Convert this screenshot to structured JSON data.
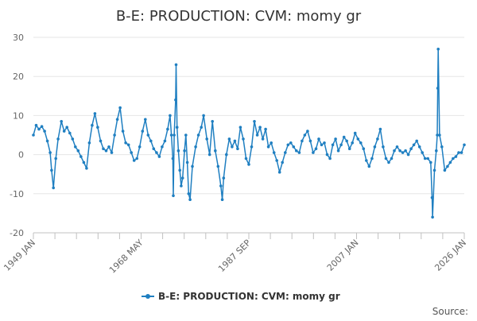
{
  "chart_data": {
    "type": "line",
    "title": "B-E: PRODUCTION: CVM: momy gr",
    "xlabel": "",
    "ylabel": "",
    "x_range": [
      "1949 JAN",
      "2026 JAN"
    ],
    "ylim": [
      -20,
      30
    ],
    "y_ticks": [
      -20,
      -10,
      0,
      10,
      20,
      30
    ],
    "x_tick_labels": [
      "1949 JAN",
      "1968 MAY",
      "1987 SEP",
      "2007 JAN",
      "2026 JAN"
    ],
    "grid": true,
    "legend": "bottom-center",
    "series": [
      {
        "name": "B-E: PRODUCTION: CVM: momy gr",
        "color": "#1f7fc1",
        "points": [
          [
            "1949-01",
            5.0
          ],
          [
            "1949-07",
            7.5
          ],
          [
            "1950-01",
            6.5
          ],
          [
            "1950-07",
            7.2
          ],
          [
            "1951-01",
            6.0
          ],
          [
            "1951-07",
            3.5
          ],
          [
            "1952-01",
            0.5
          ],
          [
            "1952-04",
            -4.0
          ],
          [
            "1952-08",
            -8.5
          ],
          [
            "1953-01",
            -1.0
          ],
          [
            "1953-06",
            4.0
          ],
          [
            "1954-01",
            8.5
          ],
          [
            "1954-07",
            6.0
          ],
          [
            "1955-01",
            7.0
          ],
          [
            "1955-07",
            5.5
          ],
          [
            "1956-01",
            4.0
          ],
          [
            "1956-07",
            2.0
          ],
          [
            "1957-01",
            1.0
          ],
          [
            "1957-07",
            -0.5
          ],
          [
            "1958-01",
            -2.0
          ],
          [
            "1958-07",
            -3.5
          ],
          [
            "1959-01",
            3.0
          ],
          [
            "1959-07",
            7.5
          ],
          [
            "1960-01",
            10.5
          ],
          [
            "1960-07",
            7.0
          ],
          [
            "1961-01",
            3.5
          ],
          [
            "1961-07",
            1.5
          ],
          [
            "1962-01",
            1.0
          ],
          [
            "1962-07",
            2.0
          ],
          [
            "1963-01",
            0.5
          ],
          [
            "1963-07",
            5.0
          ],
          [
            "1964-01",
            9.0
          ],
          [
            "1964-07",
            12.0
          ],
          [
            "1965-01",
            6.0
          ],
          [
            "1965-07",
            3.0
          ],
          [
            "1966-01",
            2.5
          ],
          [
            "1966-07",
            0.5
          ],
          [
            "1967-01",
            -1.5
          ],
          [
            "1967-07",
            -1.0
          ],
          [
            "1968-01",
            2.0
          ],
          [
            "1968-07",
            6.0
          ],
          [
            "1969-01",
            9.0
          ],
          [
            "1969-07",
            5.0
          ],
          [
            "1970-01",
            3.5
          ],
          [
            "1970-07",
            1.5
          ],
          [
            "1971-01",
            0.5
          ],
          [
            "1971-07",
            -0.5
          ],
          [
            "1972-01",
            2.0
          ],
          [
            "1972-07",
            3.5
          ],
          [
            "1973-01",
            6.5
          ],
          [
            "1973-06",
            10.0
          ],
          [
            "1973-09",
            5.0
          ],
          [
            "1973-12",
            -1.0
          ],
          [
            "1974-01",
            -10.5
          ],
          [
            "1974-03",
            5.0
          ],
          [
            "1974-06",
            14.0
          ],
          [
            "1974-07",
            23.0
          ],
          [
            "1974-09",
            7.0
          ],
          [
            "1974-12",
            1.0
          ],
          [
            "1975-03",
            -4.0
          ],
          [
            "1975-06",
            -8.0
          ],
          [
            "1975-09",
            -6.0
          ],
          [
            "1976-01",
            1.0
          ],
          [
            "1976-04",
            5.0
          ],
          [
            "1976-07",
            -2.0
          ],
          [
            "1976-10",
            -10.0
          ],
          [
            "1977-01",
            -11.5
          ],
          [
            "1977-06",
            -3.0
          ],
          [
            "1978-01",
            2.0
          ],
          [
            "1978-07",
            5.0
          ],
          [
            "1979-01",
            7.0
          ],
          [
            "1979-06",
            10.0
          ],
          [
            "1980-01",
            4.0
          ],
          [
            "1980-07",
            0.0
          ],
          [
            "1981-01",
            8.5
          ],
          [
            "1981-07",
            1.0
          ],
          [
            "1982-01",
            -3.0
          ],
          [
            "1982-07",
            -8.0
          ],
          [
            "1982-10",
            -11.5
          ],
          [
            "1983-01",
            -6.0
          ],
          [
            "1983-07",
            0.0
          ],
          [
            "1984-01",
            4.0
          ],
          [
            "1984-07",
            2.0
          ],
          [
            "1985-01",
            3.5
          ],
          [
            "1985-07",
            1.5
          ],
          [
            "1986-01",
            7.0
          ],
          [
            "1986-07",
            4.0
          ],
          [
            "1987-01",
            -1.0
          ],
          [
            "1987-07",
            -2.5
          ],
          [
            "1988-01",
            2.0
          ],
          [
            "1988-07",
            8.5
          ],
          [
            "1989-01",
            5.0
          ],
          [
            "1989-07",
            7.0
          ],
          [
            "1990-01",
            4.0
          ],
          [
            "1990-07",
            6.5
          ],
          [
            "1991-01",
            2.0
          ],
          [
            "1991-07",
            3.0
          ],
          [
            "1992-01",
            0.5
          ],
          [
            "1992-07",
            -1.5
          ],
          [
            "1993-01",
            -4.5
          ],
          [
            "1993-07",
            -2.0
          ],
          [
            "1994-01",
            0.5
          ],
          [
            "1994-07",
            2.5
          ],
          [
            "1995-01",
            3.0
          ],
          [
            "1995-07",
            2.0
          ],
          [
            "1996-01",
            1.0
          ],
          [
            "1996-07",
            0.5
          ],
          [
            "1997-01",
            3.5
          ],
          [
            "1997-07",
            5.0
          ],
          [
            "1998-01",
            6.0
          ],
          [
            "1998-07",
            3.5
          ],
          [
            "1999-01",
            0.5
          ],
          [
            "1999-07",
            1.5
          ],
          [
            "2000-01",
            4.0
          ],
          [
            "2000-07",
            2.5
          ],
          [
            "2001-01",
            3.0
          ],
          [
            "2001-07",
            0.0
          ],
          [
            "2002-01",
            -1.0
          ],
          [
            "2002-07",
            2.5
          ],
          [
            "2003-01",
            4.0
          ],
          [
            "2003-07",
            1.0
          ],
          [
            "2004-01",
            2.5
          ],
          [
            "2004-07",
            4.5
          ],
          [
            "2005-01",
            3.5
          ],
          [
            "2005-07",
            1.5
          ],
          [
            "2006-01",
            3.0
          ],
          [
            "2006-07",
            5.5
          ],
          [
            "2007-01",
            4.0
          ],
          [
            "2007-07",
            3.0
          ],
          [
            "2008-01",
            1.5
          ],
          [
            "2008-07",
            -1.5
          ],
          [
            "2009-01",
            -3.0
          ],
          [
            "2009-07",
            -1.0
          ],
          [
            "2010-01",
            2.0
          ],
          [
            "2010-07",
            4.0
          ],
          [
            "2011-01",
            6.5
          ],
          [
            "2011-07",
            2.0
          ],
          [
            "2012-01",
            -1.0
          ],
          [
            "2012-07",
            -2.0
          ],
          [
            "2013-01",
            -1.0
          ],
          [
            "2013-07",
            1.0
          ],
          [
            "2014-01",
            2.0
          ],
          [
            "2014-07",
            1.0
          ],
          [
            "2015-01",
            0.5
          ],
          [
            "2015-07",
            1.0
          ],
          [
            "2016-01",
            0.0
          ],
          [
            "2016-07",
            1.5
          ],
          [
            "2017-01",
            2.5
          ],
          [
            "2017-07",
            3.5
          ],
          [
            "2018-01",
            2.0
          ],
          [
            "2018-07",
            0.5
          ],
          [
            "2019-01",
            -1.0
          ],
          [
            "2019-07",
            -1.0
          ],
          [
            "2020-01",
            -2.0
          ],
          [
            "2020-04",
            -11.0
          ],
          [
            "2020-05",
            -16.0
          ],
          [
            "2020-09",
            -4.0
          ],
          [
            "2021-01",
            1.0
          ],
          [
            "2021-03",
            5.0
          ],
          [
            "2021-04",
            17.0
          ],
          [
            "2021-05",
            27.0
          ],
          [
            "2021-08",
            5.0
          ],
          [
            "2022-01",
            2.0
          ],
          [
            "2022-07",
            -4.0
          ],
          [
            "2023-01",
            -3.0
          ],
          [
            "2023-07",
            -2.0
          ],
          [
            "2024-01",
            -1.0
          ],
          [
            "2024-07",
            -0.5
          ],
          [
            "2025-01",
            0.5
          ],
          [
            "2025-07",
            0.5
          ],
          [
            "2026-01",
            2.5
          ]
        ]
      }
    ]
  },
  "footer": {
    "source_label": "Source:"
  }
}
